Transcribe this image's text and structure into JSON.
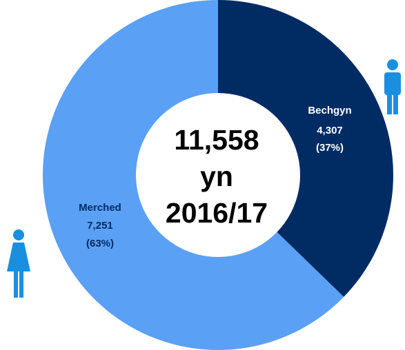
{
  "chart_data": {
    "type": "donut",
    "categories": [
      "Bechgyn",
      "Merched"
    ],
    "values": [
      4307,
      7251
    ],
    "value_labels": [
      "4,307",
      "7,251"
    ],
    "percent_labels": [
      "(37%)",
      "(63%)"
    ],
    "colors": [
      "#002b63",
      "#5aa0f5"
    ],
    "label_colors": [
      "#ffffff",
      "#002b63"
    ],
    "center_text": [
      "11,558",
      "yn",
      "2016/17"
    ]
  }
}
